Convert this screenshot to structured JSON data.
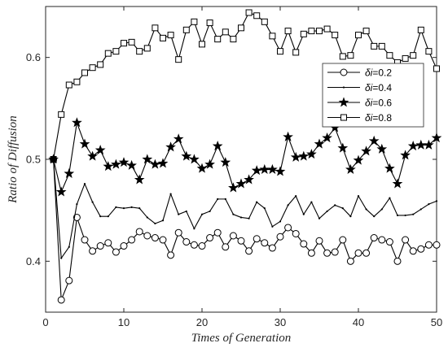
{
  "chart_data": {
    "type": "line",
    "xlabel": "Times of Generation",
    "ylabel": "Ratio of Diffusion",
    "xlim": [
      0,
      50
    ],
    "ylim": [
      0.35,
      0.65
    ],
    "xticks": [
      0,
      10,
      20,
      30,
      40,
      50
    ],
    "yticks": [
      0.4,
      0.5,
      0.6
    ],
    "grid": false,
    "legend_position": "top-right",
    "line_color": "#000000",
    "x": [
      1,
      2,
      3,
      4,
      5,
      6,
      7,
      8,
      9,
      10,
      11,
      12,
      13,
      14,
      15,
      16,
      17,
      18,
      19,
      20,
      21,
      22,
      23,
      24,
      25,
      26,
      27,
      28,
      29,
      30,
      31,
      32,
      33,
      34,
      35,
      36,
      37,
      38,
      39,
      40,
      41,
      42,
      43,
      44,
      45,
      46,
      47,
      48,
      49,
      50
    ],
    "series": [
      {
        "name": "δi=0.2",
        "legend_symbol": "δ",
        "legend_var": "i",
        "legend_value": "=0.2",
        "marker": "circle",
        "values": [
          0.5,
          0.362,
          0.381,
          0.443,
          0.421,
          0.41,
          0.415,
          0.418,
          0.409,
          0.415,
          0.421,
          0.429,
          0.425,
          0.423,
          0.421,
          0.406,
          0.428,
          0.419,
          0.416,
          0.415,
          0.423,
          0.428,
          0.414,
          0.425,
          0.42,
          0.41,
          0.422,
          0.418,
          0.413,
          0.424,
          0.433,
          0.427,
          0.417,
          0.408,
          0.42,
          0.408,
          0.409,
          0.421,
          0.4,
          0.408,
          0.408,
          0.423,
          0.421,
          0.419,
          0.4,
          0.421,
          0.41,
          0.412,
          0.416,
          0.416
        ]
      },
      {
        "name": "δi=0.4",
        "legend_symbol": "δ",
        "legend_var": "i",
        "legend_value": "=0.4",
        "marker": "point",
        "values": [
          0.5,
          0.403,
          0.414,
          0.456,
          0.476,
          0.458,
          0.444,
          0.444,
          0.453,
          0.452,
          0.453,
          0.452,
          0.443,
          0.437,
          0.44,
          0.466,
          0.446,
          0.449,
          0.432,
          0.446,
          0.449,
          0.461,
          0.461,
          0.446,
          0.443,
          0.442,
          0.458,
          0.452,
          0.434,
          0.439,
          0.455,
          0.464,
          0.446,
          0.458,
          0.442,
          0.449,
          0.455,
          0.452,
          0.444,
          0.464,
          0.451,
          0.444,
          0.451,
          0.462,
          0.445,
          0.445,
          0.446,
          0.451,
          0.456,
          0.459
        ]
      },
      {
        "name": "δi=0.6",
        "legend_symbol": "δ",
        "legend_var": "i",
        "legend_value": "=0.6",
        "marker": "star",
        "values": [
          0.5,
          0.468,
          0.486,
          0.536,
          0.515,
          0.503,
          0.509,
          0.493,
          0.495,
          0.497,
          0.494,
          0.48,
          0.5,
          0.495,
          0.496,
          0.512,
          0.52,
          0.503,
          0.5,
          0.491,
          0.495,
          0.513,
          0.497,
          0.472,
          0.476,
          0.48,
          0.489,
          0.49,
          0.49,
          0.488,
          0.522,
          0.502,
          0.503,
          0.505,
          0.515,
          0.521,
          0.531,
          0.511,
          0.49,
          0.499,
          0.508,
          0.518,
          0.51,
          0.491,
          0.476,
          0.504,
          0.513,
          0.514,
          0.514,
          0.521
        ]
      },
      {
        "name": "δi=0.8",
        "legend_symbol": "δ",
        "legend_var": "i",
        "legend_value": "=0.8",
        "marker": "square",
        "values": [
          0.5,
          0.544,
          0.573,
          0.576,
          0.585,
          0.59,
          0.593,
          0.604,
          0.606,
          0.614,
          0.615,
          0.606,
          0.609,
          0.629,
          0.619,
          0.622,
          0.598,
          0.627,
          0.635,
          0.613,
          0.634,
          0.618,
          0.625,
          0.618,
          0.629,
          0.644,
          0.641,
          0.635,
          0.621,
          0.606,
          0.626,
          0.605,
          0.623,
          0.626,
          0.626,
          0.628,
          0.622,
          0.601,
          0.602,
          0.622,
          0.626,
          0.611,
          0.611,
          0.602,
          0.595,
          0.599,
          0.602,
          0.627,
          0.606,
          0.589
        ]
      }
    ]
  }
}
